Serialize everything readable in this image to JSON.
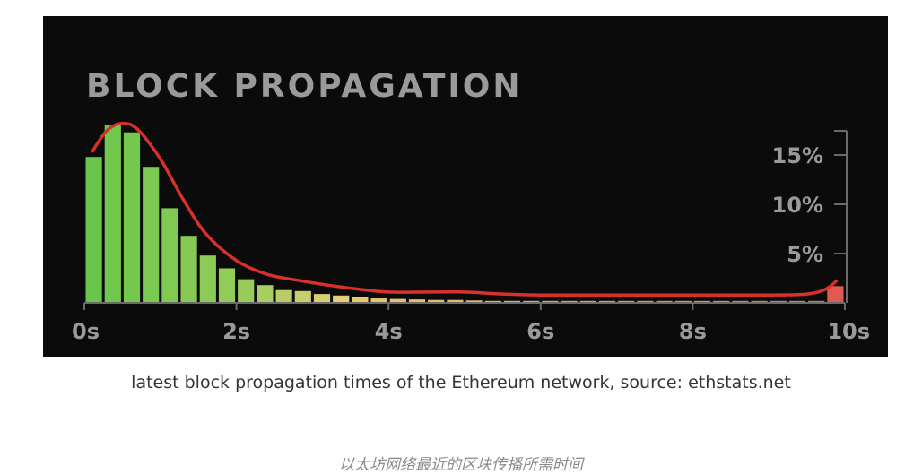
{
  "colors": {
    "panel_bg": "#0b0b0b",
    "curve": "#d8312b",
    "axis": "#6a6a6a",
    "label": "#9a9a9a",
    "last_bar": "#e05a52"
  },
  "chart_data": {
    "type": "bar",
    "title": "BLOCK PROPAGATION",
    "x_tick_labels": [
      "0s",
      "2s",
      "4s",
      "6s",
      "8s",
      "10s"
    ],
    "y_tick_labels": [
      "5%",
      "10%",
      "15%"
    ],
    "xlim": [
      0,
      10
    ],
    "ylim": [
      0,
      18
    ],
    "bin_width_s": 0.25,
    "values": [
      14.8,
      18.0,
      17.3,
      13.8,
      9.6,
      6.8,
      4.8,
      3.5,
      2.4,
      1.8,
      1.3,
      1.2,
      0.9,
      0.75,
      0.55,
      0.45,
      0.4,
      0.35,
      0.3,
      0.3,
      0.25,
      0.2,
      0.2,
      0.2,
      0.2,
      0.2,
      0.2,
      0.2,
      0.2,
      0.2,
      0.2,
      0.2,
      0.2,
      0.2,
      0.2,
      0.2,
      0.2,
      0.2,
      0.2,
      1.7
    ],
    "curve": {
      "name": "",
      "points": [
        [
          0.1,
          15.3
        ],
        [
          0.3,
          17.5
        ],
        [
          0.5,
          18.2
        ],
        [
          0.7,
          17.6
        ],
        [
          1.0,
          14.6
        ],
        [
          1.3,
          10.5
        ],
        [
          1.6,
          7.0
        ],
        [
          2.0,
          4.3
        ],
        [
          2.4,
          2.9
        ],
        [
          2.8,
          2.3
        ],
        [
          3.2,
          1.8
        ],
        [
          3.6,
          1.4
        ],
        [
          4.0,
          1.1
        ],
        [
          4.5,
          1.1
        ],
        [
          5.0,
          1.1
        ],
        [
          5.5,
          0.9
        ],
        [
          6.0,
          0.8
        ],
        [
          7.0,
          0.8
        ],
        [
          8.0,
          0.8
        ],
        [
          9.0,
          0.8
        ],
        [
          9.5,
          0.9
        ],
        [
          9.75,
          1.4
        ],
        [
          9.9,
          2.3
        ]
      ]
    },
    "grid": false,
    "legend": "none"
  },
  "caption": "latest block propagation times of the Ethereum network, source: ethstats.net",
  "caption_cn": "以太坊网络最近的区块传播所需时间"
}
